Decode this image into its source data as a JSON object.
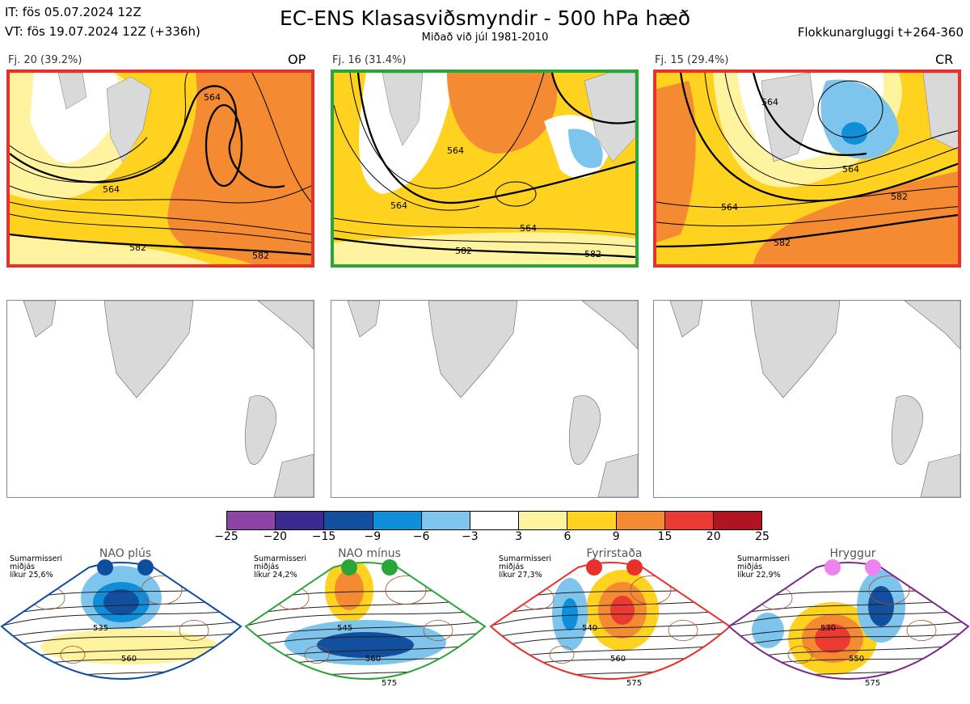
{
  "header": {
    "it": "IT: fös 05.07.2024 12Z",
    "vt": "VT: fös 19.07.2024 12Z  (+336h)",
    "title": "EC-ENS Klasasviðsmyndir - 500 hPa hæð",
    "subtitle": "Miðað við júl 1981-2010",
    "window": "Flokkunargluggi t+264-360"
  },
  "panels": [
    {
      "label": "Fj. 20 (39.2%)",
      "tag": "OP",
      "frame": "#e8312b",
      "contour_labels": [
        "564",
        "564",
        "582",
        "582"
      ]
    },
    {
      "label": "Fj. 16 (31.4%)",
      "tag": "",
      "frame": "#2aa53a",
      "contour_labels": [
        "564",
        "564",
        "564",
        "582",
        "582"
      ]
    },
    {
      "label": "Fj. 15 (29.4%)",
      "tag": "CR",
      "frame": "#e8312b",
      "contour_labels": [
        "564",
        "564",
        "564",
        "582",
        "582"
      ]
    }
  ],
  "colorbar": {
    "colors": [
      "#8e44a5",
      "#3b2a8f",
      "#124f9e",
      "#0f8fd9",
      "#7ec5ee",
      "#ffffff",
      "#fff3a0",
      "#ffd21f",
      "#f48a32",
      "#ea3a32",
      "#b01420"
    ],
    "ticks": [
      "−25",
      "−20",
      "−15",
      "−9",
      "−6",
      "−3",
      "3",
      "6",
      "9",
      "15",
      "20",
      "25"
    ]
  },
  "regimes": [
    {
      "name": "NAO plús",
      "season": "Sumarmisseri",
      "mid": "miðjás",
      "prob": "líkur 25,6%",
      "dot_color": "#0d4f9e",
      "frame": "#0d4f9e",
      "contour_labels": [
        "535",
        "560"
      ]
    },
    {
      "name": "NAO mínus",
      "season": "Sumarmisseri",
      "mid": "miðjás",
      "prob": "líkur 24,2%",
      "dot_color": "#2aa53a",
      "frame": "#2aa53a",
      "contour_labels": [
        "545",
        "560",
        "575"
      ]
    },
    {
      "name": "Fyrirstaða",
      "season": "Sumarmisseri",
      "mid": "miðjás",
      "prob": "líkur 27,3%",
      "dot_color": "#e8312b",
      "frame": "#e8312b",
      "contour_labels": [
        "540",
        "560",
        "575"
      ]
    },
    {
      "name": "Hryggur",
      "season": "Sumarmisseri",
      "mid": "miðjás",
      "prob": "líkur 22,9%",
      "dot_color": "#ee82ee",
      "frame": "#7a2a8a",
      "contour_labels": [
        "530",
        "550",
        "575"
      ]
    }
  ]
}
